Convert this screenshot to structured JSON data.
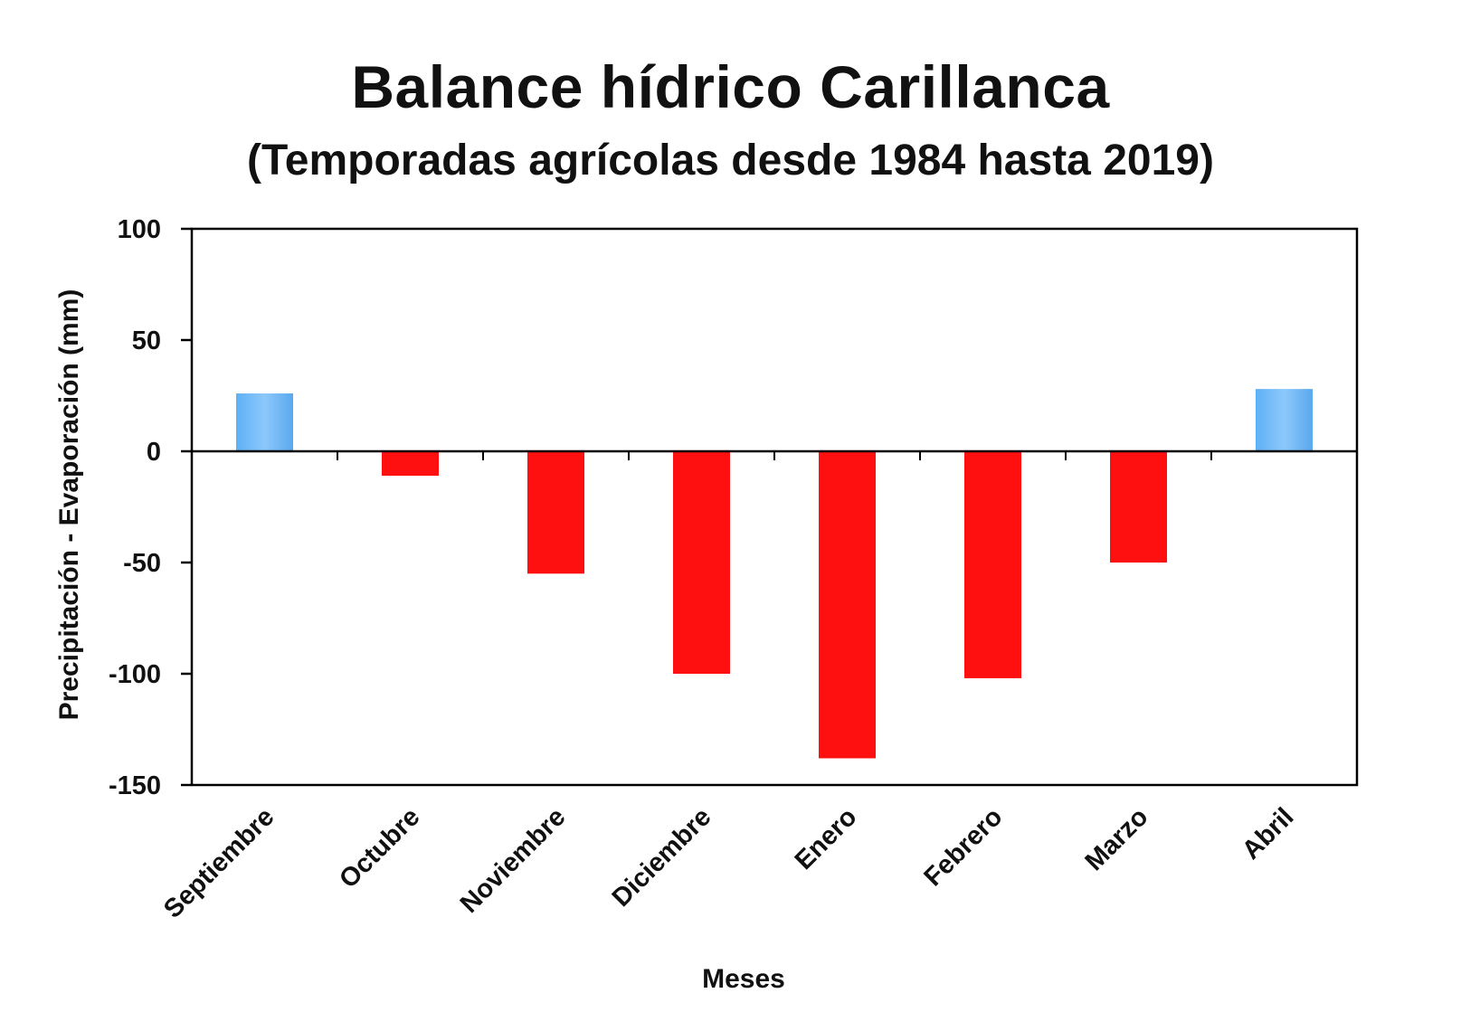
{
  "chart_data": {
    "type": "bar",
    "title": "Balance hídrico Carillanca",
    "subtitle": "(Temporadas agrícolas desde 1984 hasta 2019)",
    "xlabel": "Meses",
    "ylabel": "Precipitación - Evaporación (mm)",
    "categories": [
      "Septiembre",
      "Octubre",
      "Noviembre",
      "Diciembre",
      "Enero",
      "Febrero",
      "Marzo",
      "Abril"
    ],
    "values": [
      26,
      -11,
      -55,
      -100,
      -138,
      -102,
      -50,
      28
    ],
    "ylim": [
      -150,
      100
    ],
    "yticks": [
      "100",
      "50",
      "0",
      "-50",
      "-100",
      "-150"
    ],
    "ytick_values": [
      100,
      50,
      0,
      -50,
      -100,
      -150
    ],
    "grid": false,
    "legend": "none",
    "colors": {
      "positive": "#5aaaf0",
      "negative": "#ff1010",
      "axis": "#000000"
    }
  }
}
